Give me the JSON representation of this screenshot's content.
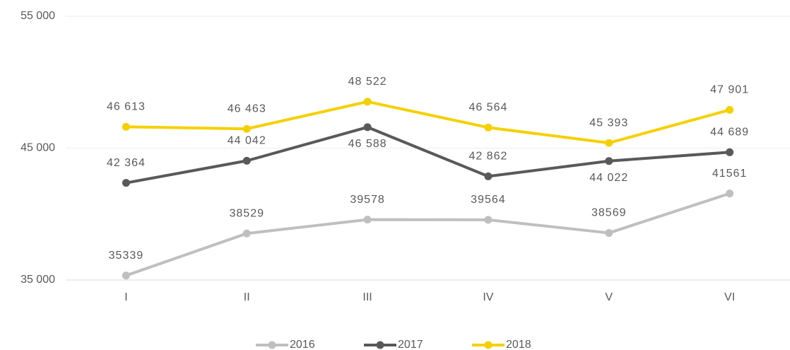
{
  "chart_data": {
    "type": "line",
    "categories": [
      "I",
      "II",
      "III",
      "IV",
      "V",
      "VI"
    ],
    "series": [
      {
        "name": "2016",
        "color": "#bfbfbf",
        "values": [
          35339,
          38529,
          39578,
          39564,
          38569,
          41561
        ]
      },
      {
        "name": "2017",
        "color": "#595959",
        "values": [
          42364,
          44042,
          46588,
          42862,
          44022,
          44689
        ],
        "value_labels": [
          "42 364",
          "44 042",
          "46 588",
          "42 862",
          "44 022",
          "44 689"
        ]
      },
      {
        "name": "2018",
        "color": "#f5d000",
        "values": [
          46613,
          46463,
          48522,
          46564,
          45393,
          47901
        ],
        "value_labels": [
          "46 613",
          "46 463",
          "48 522",
          "46 564",
          "45 393",
          "47 901"
        ]
      }
    ],
    "ylim": [
      35000,
      55000
    ],
    "yticks": [
      {
        "value": 35000,
        "label": "35 000"
      },
      {
        "value": 45000,
        "label": "45 000"
      },
      {
        "value": 55000,
        "label": "55 000"
      }
    ],
    "grid": true,
    "legend": "bottom"
  }
}
